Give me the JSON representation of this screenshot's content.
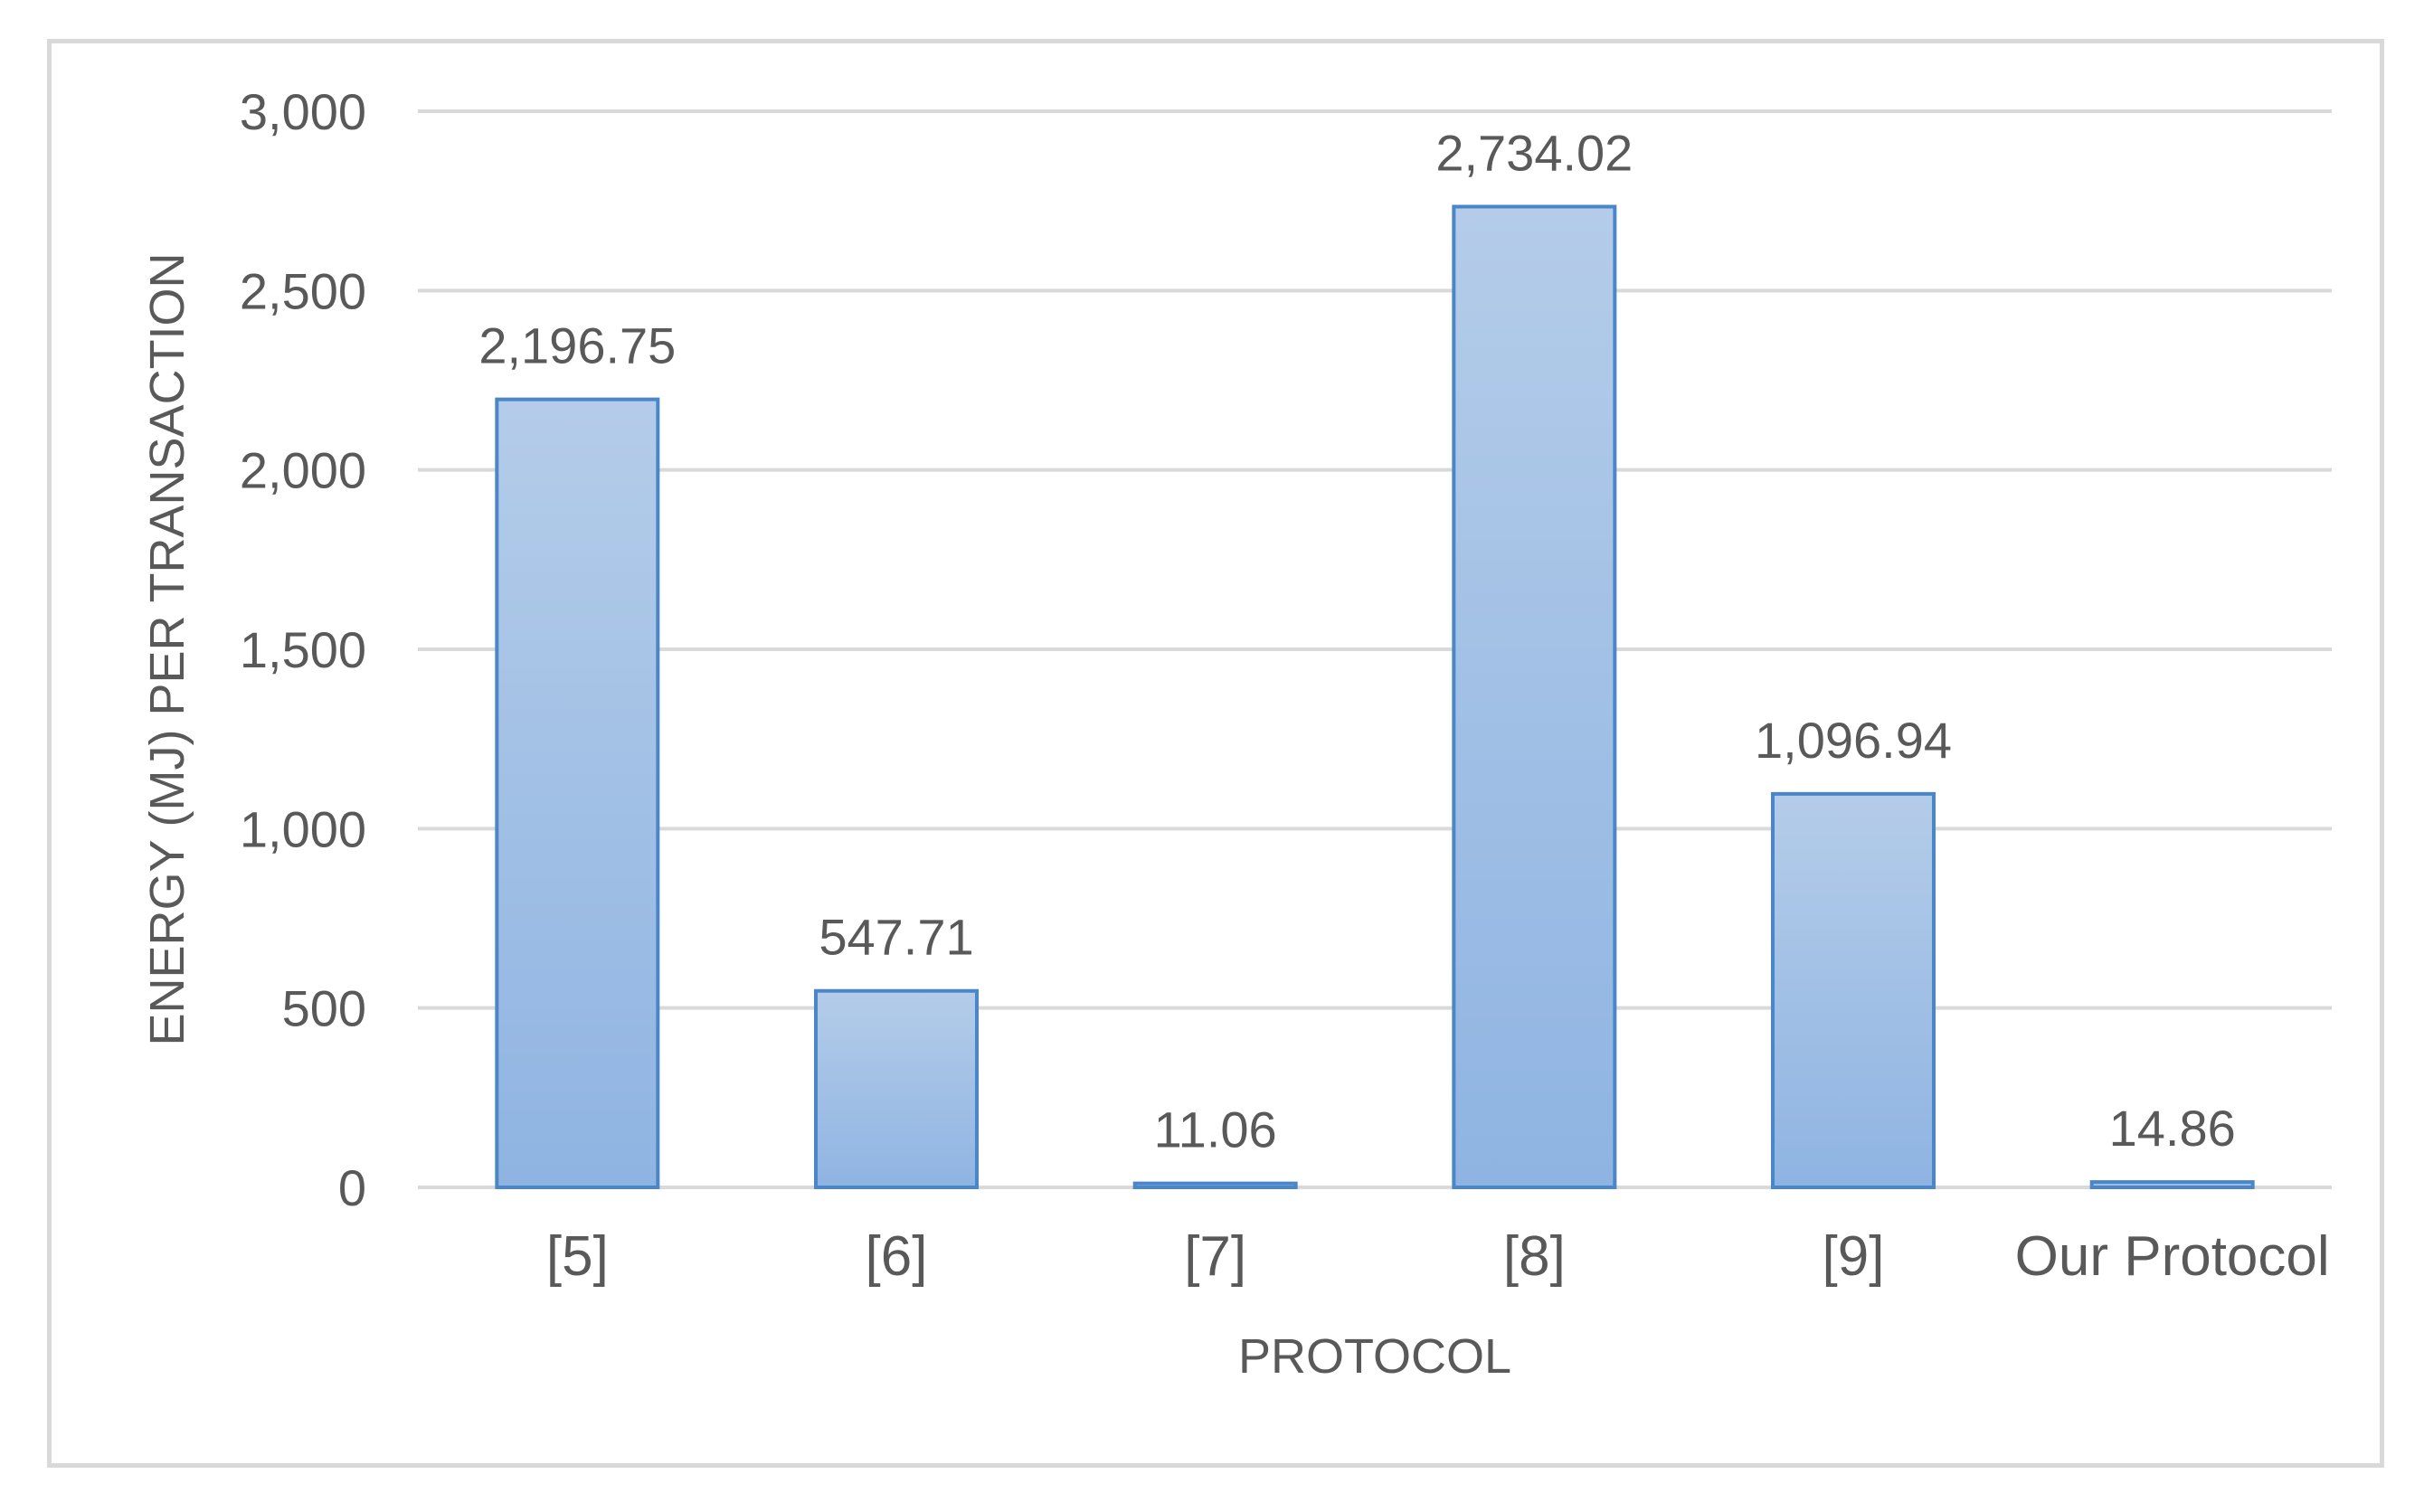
{
  "chart_data": {
    "type": "bar",
    "title": "",
    "xlabel": "PROTOCOL",
    "ylabel": "ENERGY (MJ) PER TRANSACTION",
    "categories": [
      "[5]",
      "[6]",
      "[7]",
      "[8]",
      "[9]",
      "Our Protocol"
    ],
    "values": [
      2196.75,
      547.71,
      11.06,
      2734.02,
      1096.94,
      14.86
    ],
    "data_labels": [
      "2,196.75",
      "547.71",
      "11.06",
      "2,734.02",
      "1,096.94",
      "14.86"
    ],
    "ylim": [
      0,
      3000
    ],
    "yticks": [
      0,
      500,
      1000,
      1500,
      2000,
      2500,
      3000
    ],
    "ytick_labels": [
      "0",
      "500",
      "1,000",
      "1,500",
      "2,000",
      "2,500",
      "3,000"
    ],
    "grid": true,
    "legend": "none",
    "colors": {
      "bar_fill_top": "#b4cce9",
      "bar_fill_bottom": "#8fb4e2",
      "bar_stroke": "#4a86c8",
      "grid": "#d9d9d9",
      "text": "#595959",
      "frame": "#d9d9d9"
    }
  }
}
